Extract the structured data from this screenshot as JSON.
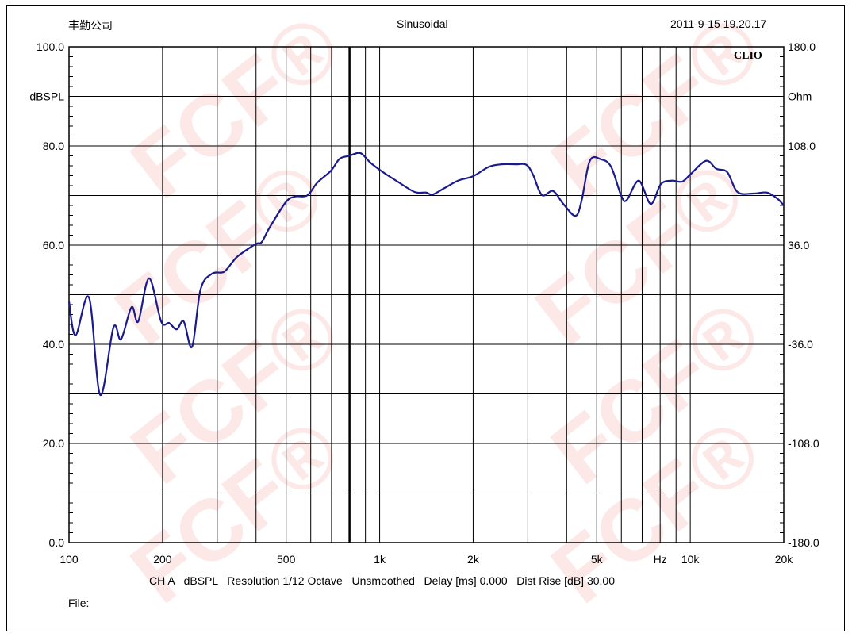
{
  "header": {
    "company": "丰勤公司",
    "mode": "Sinusoidal",
    "timestamp": "2011-9-15 19.20.17",
    "logo": "CLIO"
  },
  "footer": {
    "settings": "CH A   dBSPL   Resolution 1/12 Octave   Unsmoothed   Delay [ms] 0.000   Dist Rise [dB] 30.00",
    "file_label": "File:"
  },
  "watermark": "FCF®",
  "colors": {
    "curve": "#1a1a8c",
    "grid": "#000000"
  },
  "chart_data": {
    "type": "line",
    "title": "Sinusoidal",
    "xlabel": "Hz",
    "ylabel": "dBSPL",
    "y2label": "Ohm",
    "xscale": "log",
    "xlim": [
      100,
      20000
    ],
    "ylim": [
      0,
      100
    ],
    "y2lim": [
      -180,
      180
    ],
    "grid": true,
    "x_ticks": [
      {
        "v": 100,
        "label": "100"
      },
      {
        "v": 200,
        "label": "200"
      },
      {
        "v": 500,
        "label": "500"
      },
      {
        "v": 1000,
        "label": "1k"
      },
      {
        "v": 2000,
        "label": "2k"
      },
      {
        "v": 5000,
        "label": "5k"
      },
      {
        "v": 8000,
        "label": "Hz"
      },
      {
        "v": 10000,
        "label": "10k"
      },
      {
        "v": 20000,
        "label": "20k"
      }
    ],
    "y_ticks": [
      {
        "v": 100,
        "label": "100.0"
      },
      {
        "v": 90,
        "label": "dBSPL"
      },
      {
        "v": 80,
        "label": "80.0"
      },
      {
        "v": 60,
        "label": "60.0"
      },
      {
        "v": 40,
        "label": "40.0"
      },
      {
        "v": 20,
        "label": "20.0"
      },
      {
        "v": 0,
        "label": "0.0"
      }
    ],
    "y2_ticks": [
      {
        "v": 100,
        "label": "180.0"
      },
      {
        "v": 90,
        "label": "Ohm"
      },
      {
        "v": 80,
        "label": "108.0"
      },
      {
        "v": 60,
        "label": "36.0"
      },
      {
        "v": 40,
        "label": "-36.0"
      },
      {
        "v": 20,
        "label": "-108.0"
      },
      {
        "v": 0,
        "label": "-180.0"
      }
    ],
    "series": [
      {
        "name": "CH A dBSPL",
        "x": [
          100,
          105,
          116,
          126,
          139,
          147,
          159,
          167,
          181,
          198,
          210,
          222,
          234,
          249,
          265,
          288,
          315,
          336,
          350,
          398,
          417,
          442,
          498,
          534,
          584,
          630,
          697,
          743,
          797,
          853,
          884,
          935,
          1026,
          1156,
          1298,
          1410,
          1479,
          1617,
          1788,
          2000,
          2249,
          2471,
          2744,
          2966,
          3117,
          3330,
          3616,
          3903,
          4270,
          4470,
          4750,
          5160,
          5560,
          6000,
          6250,
          6830,
          7460,
          8040,
          8720,
          9410,
          9990,
          11240,
          12130,
          13160,
          14200,
          15960,
          17640,
          19050,
          20000
        ],
        "y": [
          48.6,
          41.8,
          49.4,
          29.8,
          43.4,
          41.0,
          47.5,
          44.6,
          53.3,
          44.6,
          44.3,
          43.0,
          44.6,
          39.5,
          51.0,
          54.2,
          54.6,
          56.6,
          57.8,
          60.2,
          60.6,
          63.5,
          68.6,
          69.8,
          70.0,
          72.6,
          75.0,
          77.4,
          78.0,
          78.6,
          78.2,
          76.6,
          74.7,
          72.6,
          70.7,
          70.6,
          70.2,
          71.5,
          73.0,
          73.9,
          75.8,
          76.3,
          76.3,
          76.2,
          74.2,
          70.1,
          70.9,
          68.3,
          65.9,
          69.0,
          77.0,
          77.3,
          75.8,
          69.9,
          69.1,
          73.0,
          68.3,
          72.3,
          73.0,
          72.8,
          74.2,
          77.0,
          75.4,
          74.7,
          70.7,
          70.4,
          70.6,
          69.4,
          68.0
        ]
      }
    ]
  }
}
